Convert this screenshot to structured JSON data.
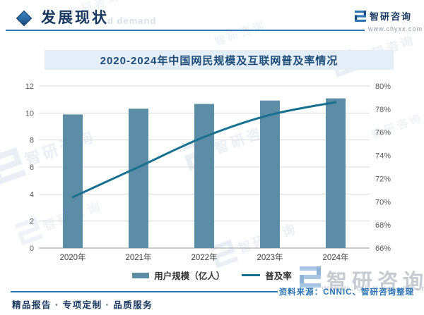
{
  "brand": {
    "name": "智研咨询",
    "url": "www.chyxx.com"
  },
  "header": {
    "section_title": "发展现状",
    "ghost_text": "d demand",
    "accent_color": "#2e75b6",
    "title_color": "#17375e"
  },
  "chart_data": {
    "type": "bar",
    "title": "2020-2024年中国网民规模及互联网普及率情况",
    "title_band_bg": "#e4eef8",
    "categories": [
      "2020年",
      "2021年",
      "2022年",
      "2023年",
      "2024年"
    ],
    "series": [
      {
        "name": "用户规模（亿人）",
        "mark": "bar",
        "axis": "left",
        "values": [
          9.89,
          10.32,
          10.67,
          10.92,
          11.08
        ],
        "color": "#5d8da6"
      },
      {
        "name": "普及率",
        "mark": "line",
        "axis": "right",
        "values": [
          70.4,
          73.0,
          75.6,
          77.5,
          78.6
        ],
        "color": "#17708f"
      }
    ],
    "left_axis": {
      "min": 0,
      "max": 12,
      "step": 2,
      "labels": [
        "0",
        "2",
        "4",
        "6",
        "8",
        "10",
        "12"
      ]
    },
    "right_axis": {
      "min": 66,
      "max": 80,
      "step": 2,
      "labels": [
        "66%",
        "68%",
        "70%",
        "72%",
        "74%",
        "76%",
        "78%",
        "80%"
      ]
    },
    "grid": true,
    "gridline_color": "#dadada",
    "baseline_color": "#9e9e9e",
    "tick_label_color": "#595959",
    "category_label_color": "#404040",
    "legend_position": "bottom"
  },
  "footer": {
    "source": "资料来源：CNNIC、智研咨询整理",
    "tagline": "精品报告 · 专项定制 · 品质服务"
  }
}
